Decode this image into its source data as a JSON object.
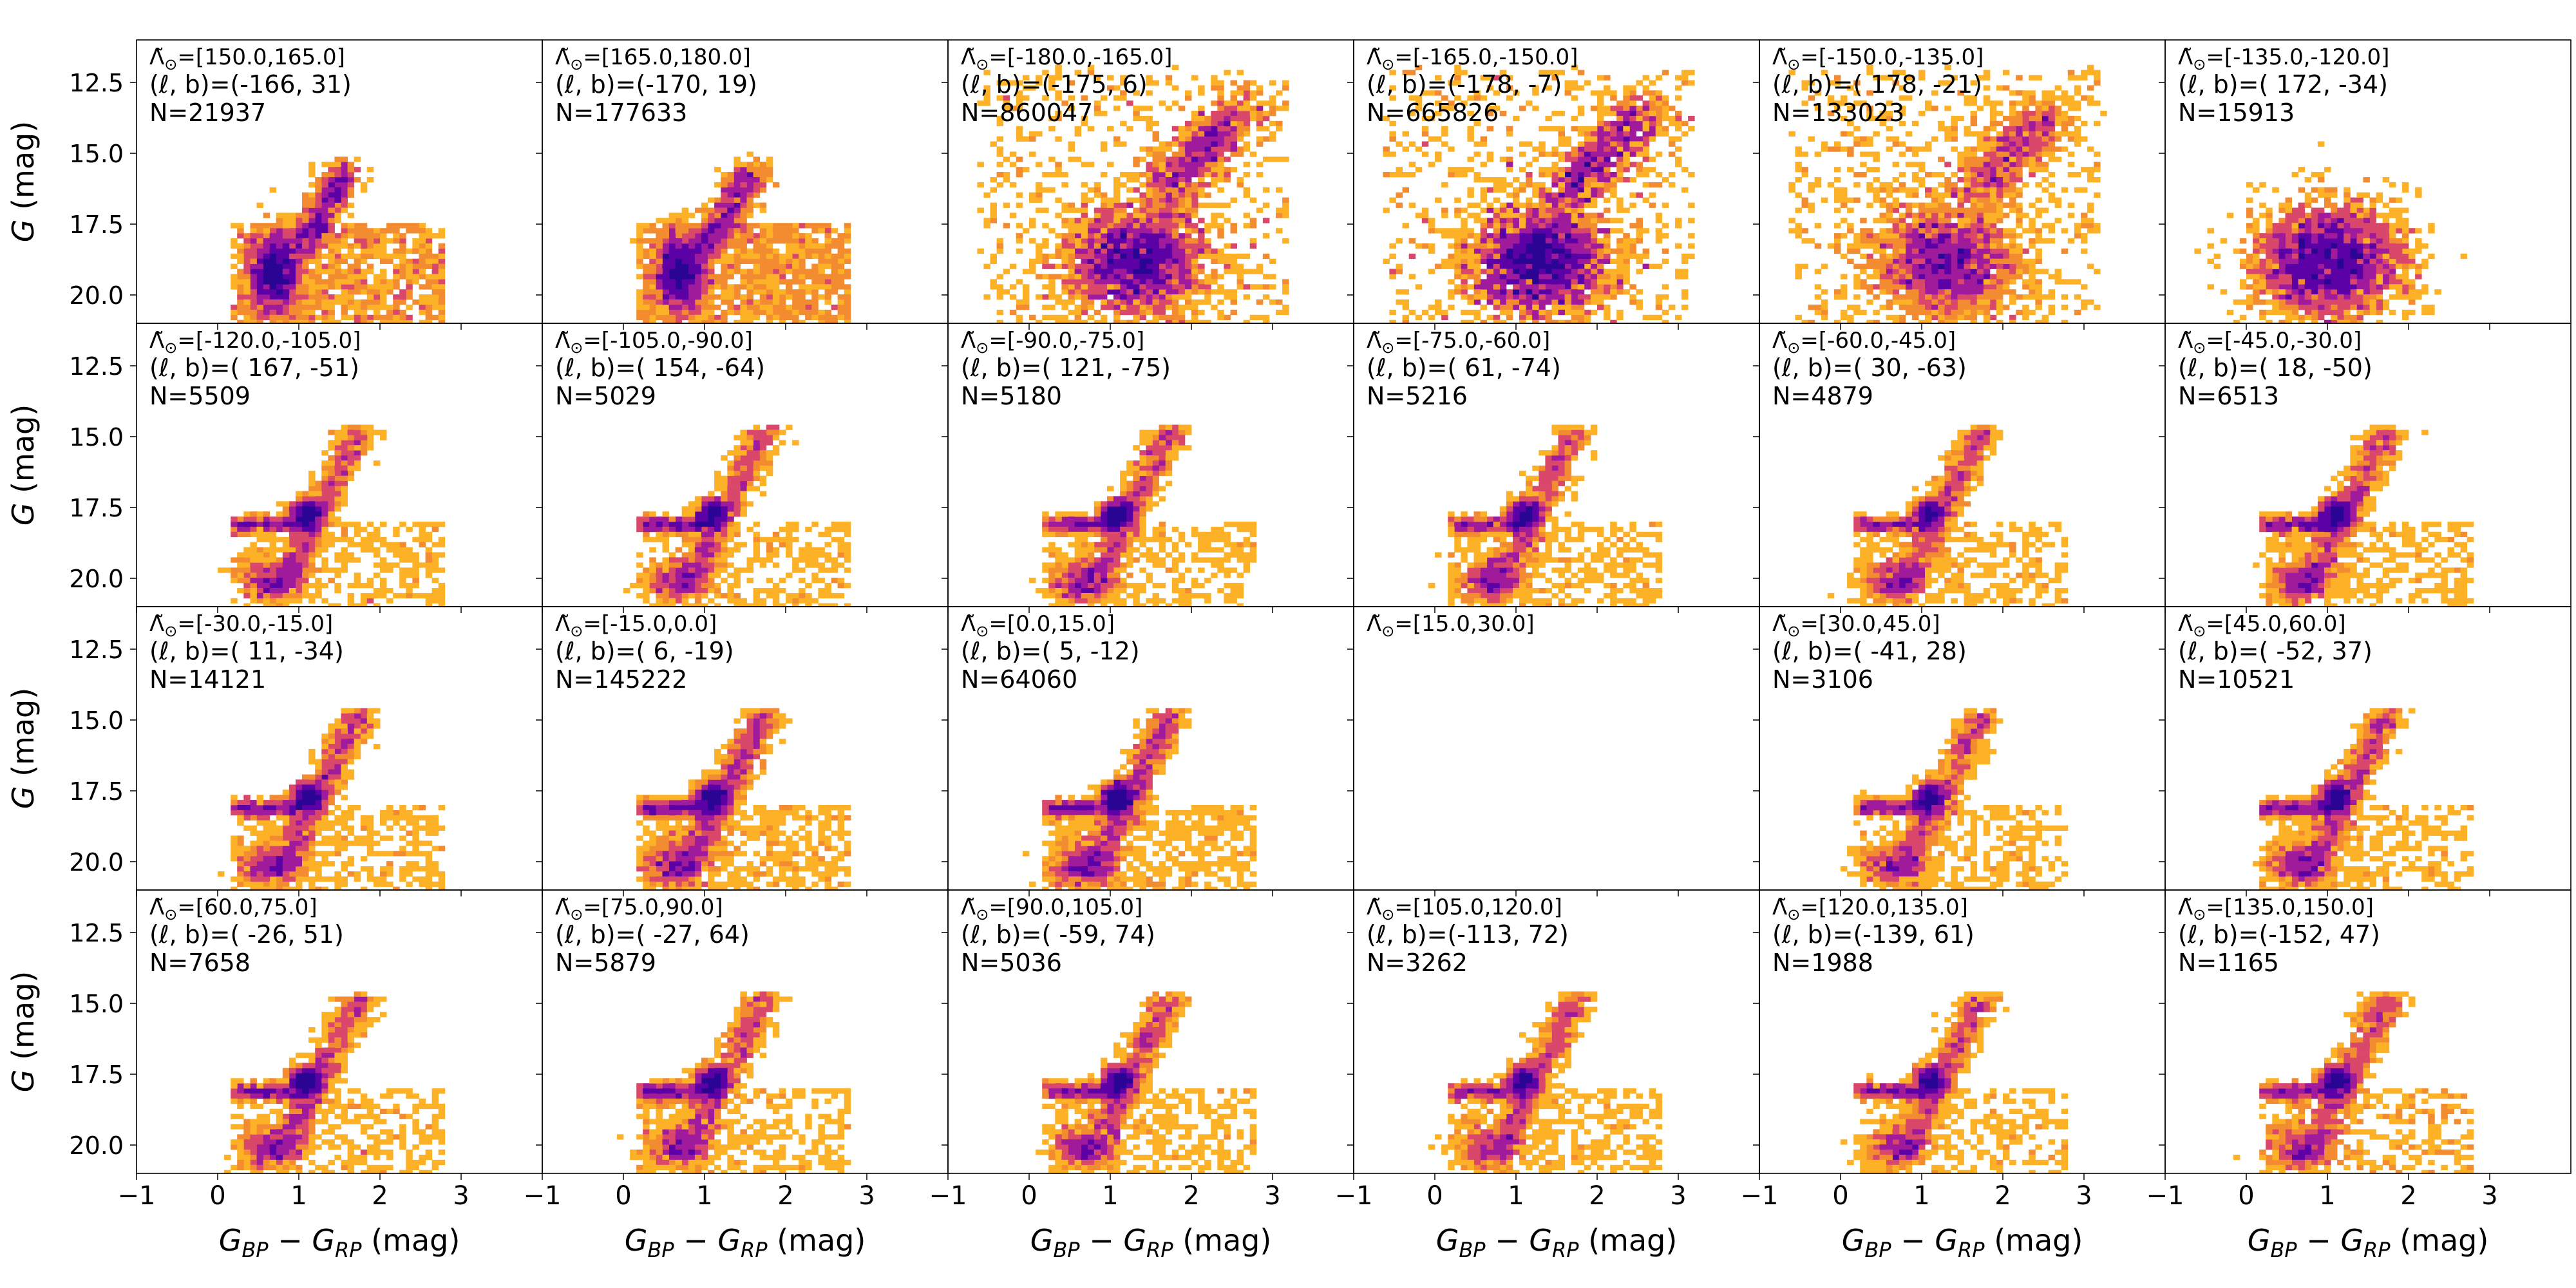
{
  "chart_data": {
    "type": "heatmap",
    "description_kind": "color-magnitude diagram grid (hexbin density)",
    "xlabel": "G_BP − G_RP (mag)",
    "xlabel_main": "G",
    "xlabel_sub1": "BP",
    "xlabel_minus": " − ",
    "xlabel_sub2": "RP",
    "xlabel_unit": " (mag)",
    "ylabel_main": "G",
    "ylabel_unit": " (mag)",
    "xlim": [
      -1,
      4
    ],
    "ylim": [
      21,
      11
    ],
    "xticks": [
      -1,
      0,
      1,
      2,
      3
    ],
    "yticks": [
      12.5,
      15.0,
      17.5,
      20.0
    ],
    "xtick_labels": [
      "−1",
      "0",
      "1",
      "2",
      "3"
    ],
    "ytick_labels": [
      "12.5",
      "15.0",
      "17.5",
      "20.0"
    ],
    "lambda_symbol": "Λ̃",
    "lambda_sub": "⊙",
    "lb_prefix": "(ℓ, b)=",
    "n_prefix": "N=",
    "colormap": [
      "#fde725",
      "#fcb126",
      "#f38b30",
      "#d9486a",
      "#a01a9c",
      "#5c01a6",
      "#2a0593"
    ],
    "panels": [
      {
        "lambda": "=[150.0,165.0]",
        "lb": "(-166,  31)",
        "n": "21937",
        "density": 21937,
        "morph": "mix"
      },
      {
        "lambda": "=[165.0,180.0]",
        "lb": "(-170,  19)",
        "n": "177633",
        "density": 177633,
        "morph": "mix"
      },
      {
        "lambda": "=[-180.0,-165.0]",
        "lb": "(-175,   6)",
        "n": "860047",
        "density": 860047,
        "morph": "disk"
      },
      {
        "lambda": "=[-165.0,-150.0]",
        "lb": "(-178,  -7)",
        "n": "665826",
        "density": 665826,
        "morph": "disk"
      },
      {
        "lambda": "=[-150.0,-135.0]",
        "lb": "( 178, -21)",
        "n": "133023",
        "density": 133023,
        "morph": "disk"
      },
      {
        "lambda": "=[-135.0,-120.0]",
        "lb": "( 172, -34)",
        "n": "15913",
        "density": 15913,
        "morph": "blob"
      },
      {
        "lambda": "=[-120.0,-105.0]",
        "lb": "( 167, -51)",
        "n": "5509",
        "density": 5509,
        "morph": "rgb"
      },
      {
        "lambda": "=[-105.0,-90.0]",
        "lb": "( 154, -64)",
        "n": "5029",
        "density": 5029,
        "morph": "rgb"
      },
      {
        "lambda": "=[-90.0,-75.0]",
        "lb": "( 121, -75)",
        "n": "5180",
        "density": 5180,
        "morph": "rgb"
      },
      {
        "lambda": "=[-75.0,-60.0]",
        "lb": "(  61, -74)",
        "n": "5216",
        "density": 5216,
        "morph": "rgb"
      },
      {
        "lambda": "=[-60.0,-45.0]",
        "lb": "(  30, -63)",
        "n": "4879",
        "density": 4879,
        "morph": "rgb"
      },
      {
        "lambda": "=[-45.0,-30.0]",
        "lb": "(  18, -50)",
        "n": "6513",
        "density": 6513,
        "morph": "rgb"
      },
      {
        "lambda": "=[-30.0,-15.0]",
        "lb": "(  11, -34)",
        "n": "14121",
        "density": 14121,
        "morph": "rgb"
      },
      {
        "lambda": "=[-15.0,0.0]",
        "lb": "(   6, -19)",
        "n": "145222",
        "density": 145222,
        "morph": "rgbdense"
      },
      {
        "lambda": "=[0.0,15.0]",
        "lb": "(   5, -12)",
        "n": "64060",
        "density": 64060,
        "morph": "rgbdense"
      },
      {
        "lambda": "=[15.0,30.0]",
        "lb": "",
        "n": "",
        "density": 0,
        "morph": "empty"
      },
      {
        "lambda": "=[30.0,45.0]",
        "lb": "( -41,  28)",
        "n": "3106",
        "density": 3106,
        "morph": "rgb"
      },
      {
        "lambda": "=[45.0,60.0]",
        "lb": "( -52,  37)",
        "n": "10521",
        "density": 10521,
        "morph": "rgb"
      },
      {
        "lambda": "=[60.0,75.0]",
        "lb": "( -26,  51)",
        "n": "7658",
        "density": 7658,
        "morph": "rgb"
      },
      {
        "lambda": "=[75.0,90.0]",
        "lb": "( -27,  64)",
        "n": "5879",
        "density": 5879,
        "morph": "rgb"
      },
      {
        "lambda": "=[90.0,105.0]",
        "lb": "( -59,  74)",
        "n": "5036",
        "density": 5036,
        "morph": "rgb"
      },
      {
        "lambda": "=[105.0,120.0]",
        "lb": "(-113,  72)",
        "n": "3262",
        "density": 3262,
        "morph": "rgb"
      },
      {
        "lambda": "=[120.0,135.0]",
        "lb": "(-139,  61)",
        "n": "1988",
        "density": 1988,
        "morph": "rgb"
      },
      {
        "lambda": "=[135.0,150.0]",
        "lb": "(-152,  47)",
        "n": "1165",
        "density": 1165,
        "morph": "rgb"
      }
    ]
  }
}
